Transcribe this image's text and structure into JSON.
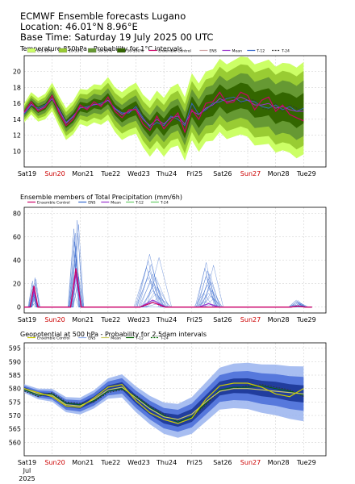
{
  "header": {
    "title": "ECMWF Ensemble forecasts Lugano",
    "location": "Location:  46.01°N 8.96°E",
    "base_time": "Base Time: Saturday 19 July 2025 00 UTC"
  },
  "x_axis": {
    "days": [
      {
        "label": "Sat19",
        "weekend": false
      },
      {
        "label": "Sun20",
        "weekend": true
      },
      {
        "label": "Mon21",
        "weekend": false
      },
      {
        "label": "Tue22",
        "weekend": false
      },
      {
        "label": "Wed23",
        "weekend": false
      },
      {
        "label": "Thu24",
        "weekend": false
      },
      {
        "label": "Fri25",
        "weekend": false
      },
      {
        "label": "Sat26",
        "weekend": false
      },
      {
        "label": "Sun27",
        "weekend": true
      },
      {
        "label": "Mon28",
        "weekend": false
      },
      {
        "label": "Tue29",
        "weekend": false
      }
    ],
    "month": "Jul",
    "year": "2025"
  },
  "colors": {
    "control": "#cc0066",
    "ens": "#3366cc",
    "mean": "#9933cc",
    "t12": "#66cc66",
    "t24": "#333333",
    "weekend": "#cc0000",
    "p_0_10": "#ccff66",
    "p_10_30": "#99cc33",
    "p_30_50": "#669933",
    "p_50_100": "#336600",
    "z_outer": "#99b3ee",
    "z_mid": "#4d70d9",
    "z_inner": "#1f3a99"
  },
  "chart_data": [
    {
      "type": "area",
      "id": "temp",
      "title": "Temperature 850hPa - Probability for 1°C intervals",
      "ylim": [
        8,
        22
      ],
      "yticks": [
        10,
        12,
        14,
        16,
        18,
        20
      ],
      "xlim": [
        0,
        10.8
      ],
      "legend": [
        {
          "label": "0.5-10%",
          "kind": "box",
          "color": "#ccff66"
        },
        {
          "label": "10-30%",
          "kind": "box",
          "color": "#99cc33"
        },
        {
          "label": "30-50%",
          "kind": "box",
          "color": "#669933"
        },
        {
          "label": "50-100%",
          "kind": "box",
          "color": "#336600"
        },
        {
          "label": "Ensemble Control",
          "kind": "line",
          "color": "#cc0066"
        },
        {
          "label": "ENS",
          "kind": "line",
          "color": "#cfa0a0"
        },
        {
          "label": "Mean",
          "kind": "line",
          "color": "#9933cc"
        },
        {
          "label": "T-12",
          "kind": "line",
          "color": "#3366cc"
        },
        {
          "label": "T-24",
          "kind": "dash",
          "color": "#333333"
        }
      ],
      "x": [
        0,
        0.25,
        0.5,
        0.75,
        1,
        1.25,
        1.5,
        1.75,
        2,
        2.25,
        2.5,
        2.75,
        3,
        3.25,
        3.5,
        3.75,
        4,
        4.25,
        4.5,
        4.75,
        5,
        5.25,
        5.5,
        5.75,
        6,
        6.25,
        6.5,
        6.75,
        7,
        7.25,
        7.5,
        7.75,
        8,
        8.25,
        8.5,
        8.75,
        9,
        9.25,
        9.5,
        9.75,
        10
      ],
      "median": [
        14.8,
        16.0,
        15.2,
        15.6,
        16.8,
        15.0,
        13.4,
        14.2,
        15.6,
        15.4,
        16.0,
        15.8,
        16.6,
        15.2,
        14.4,
        15.0,
        15.4,
        13.8,
        12.8,
        14.0,
        13.0,
        14.2,
        14.6,
        12.8,
        15.6,
        14.2,
        15.6,
        15.8,
        17.0,
        16.2,
        16.6,
        17.0,
        16.8,
        15.8,
        16.0,
        16.2,
        15.2,
        15.6,
        15.4,
        14.8,
        15.4
      ],
      "spread50": [
        0.3,
        0.4,
        0.4,
        0.4,
        0.4,
        0.5,
        0.5,
        0.6,
        0.6,
        0.6,
        0.6,
        0.6,
        0.7,
        0.7,
        0.8,
        0.8,
        0.9,
        0.9,
        1.0,
        1.0,
        1.1,
        1.1,
        1.2,
        1.2,
        1.3,
        1.3,
        1.4,
        1.4,
        1.4,
        1.5,
        1.5,
        1.6,
        1.6,
        1.6,
        1.7,
        1.7,
        1.8,
        1.8,
        1.8,
        1.9,
        1.9
      ],
      "spread30": [
        0.6,
        0.7,
        0.8,
        0.8,
        0.9,
        0.9,
        1.0,
        1.0,
        1.1,
        1.1,
        1.2,
        1.2,
        1.3,
        1.3,
        1.4,
        1.5,
        1.6,
        1.6,
        1.7,
        1.8,
        1.9,
        2.0,
        2.0,
        2.1,
        2.2,
        2.3,
        2.4,
        2.5,
        2.5,
        2.6,
        2.7,
        2.8,
        2.9,
        2.9,
        3.0,
        3.1,
        3.2,
        3.3,
        3.3,
        3.4,
        3.5
      ],
      "spread10": [
        0.9,
        1.0,
        1.1,
        1.2,
        1.3,
        1.4,
        1.5,
        1.6,
        1.6,
        1.7,
        1.8,
        1.9,
        2.0,
        2.1,
        2.2,
        2.3,
        2.4,
        2.5,
        2.6,
        2.7,
        2.8,
        2.9,
        3.0,
        3.1,
        3.2,
        3.3,
        3.4,
        3.5,
        3.6,
        3.7,
        3.8,
        3.9,
        4.0,
        4.1,
        4.2,
        4.3,
        4.4,
        4.5,
        4.5,
        4.6,
        4.7
      ],
      "spread0": [
        1.2,
        1.4,
        1.5,
        1.6,
        1.8,
        1.9,
        2.0,
        2.1,
        2.2,
        2.3,
        2.4,
        2.5,
        2.7,
        2.8,
        3.0,
        3.1,
        3.2,
        3.3,
        3.5,
        3.6,
        3.7,
        3.8,
        3.9,
        4.0,
        4.2,
        4.3,
        4.4,
        4.5,
        4.6,
        4.7,
        4.8,
        4.9,
        5.0,
        5.1,
        5.2,
        5.3,
        5.4,
        5.5,
        5.6,
        5.7,
        5.8
      ],
      "control": [
        14.9,
        16.2,
        15.0,
        15.5,
        17.0,
        14.8,
        13.2,
        14.0,
        15.8,
        15.2,
        16.2,
        15.6,
        16.8,
        15.0,
        14.2,
        15.2,
        15.2,
        13.4,
        12.6,
        14.4,
        12.8,
        13.8,
        14.8,
        12.4,
        15.2,
        14.0,
        16.0,
        16.2,
        17.4,
        16.0,
        16.2,
        17.4,
        17.0,
        15.2,
        16.4,
        16.8,
        15.0,
        15.8,
        14.6,
        14.2,
        13.8
      ],
      "mean": [
        14.8,
        15.9,
        15.2,
        15.6,
        16.6,
        15.1,
        13.5,
        14.3,
        15.5,
        15.4,
        15.9,
        15.8,
        16.4,
        15.3,
        14.6,
        15.0,
        15.3,
        14.0,
        13.2,
        14.0,
        13.4,
        14.2,
        14.4,
        13.4,
        15.0,
        14.6,
        15.4,
        15.8,
        16.6,
        16.2,
        16.4,
        16.8,
        16.4,
        15.8,
        15.8,
        16.0,
        15.4,
        15.6,
        15.2,
        15.0,
        15.0
      ],
      "t12": [
        14.6,
        15.8,
        15.4,
        15.8,
        16.6,
        15.2,
        13.6,
        14.4,
        15.4,
        15.6,
        15.8,
        16.0,
        16.4,
        15.4,
        14.8,
        14.8,
        15.6,
        14.2,
        13.0,
        13.6,
        13.2,
        14.4,
        14.0,
        13.2,
        16.0,
        14.6,
        15.2,
        16.0,
        16.2,
        16.6,
        16.8,
        16.2,
        16.4,
        16.2,
        15.6,
        15.4,
        15.8,
        15.2,
        15.6,
        15.0,
        15.4
      ],
      "t24": [
        14.7,
        15.6,
        15.5,
        15.9,
        16.4,
        15.4,
        13.8,
        14.6,
        15.2,
        15.8,
        15.6,
        16.2,
        16.2,
        15.6,
        14.9,
        14.6,
        15.8,
        14.5,
        13.4,
        13.4,
        13.6,
        14.6,
        13.8,
        13.6,
        15.6,
        14.8,
        15.0,
        15.6,
        16.4,
        16.8,
        16.6,
        16.0,
        16.6,
        16.4,
        15.4,
        15.2,
        16.0,
        15.0,
        15.8,
        15.4,
        15.0
      ]
    },
    {
      "type": "line",
      "id": "precip",
      "title": "Ensemble members of Total Precipitation (mm/6h)",
      "ylim": [
        -5,
        85
      ],
      "yticks": [
        0,
        20,
        40,
        60,
        80
      ],
      "xlim": [
        0,
        10.8
      ],
      "legend": [
        {
          "label": "Ensemble Control",
          "kind": "line",
          "color": "#cc0066"
        },
        {
          "label": "ENS",
          "kind": "line",
          "color": "#3366cc"
        },
        {
          "label": "Mean",
          "kind": "line",
          "color": "#9933cc"
        },
        {
          "label": "T-12",
          "kind": "line",
          "color": "#66cc66"
        },
        {
          "label": "T-24",
          "kind": "line",
          "color": "#66cc66"
        }
      ],
      "events": [
        {
          "x": 0.35,
          "width": 0.28,
          "max": 25,
          "min": 3,
          "control": 18,
          "mean": 14
        },
        {
          "x": 1.85,
          "width": 0.38,
          "max": 74,
          "min": 15,
          "control": 33,
          "mean": 28
        },
        {
          "x": 4.6,
          "width": 0.9,
          "max": 45,
          "min": 0,
          "control": 4,
          "mean": 6
        },
        {
          "x": 6.6,
          "width": 0.7,
          "max": 38,
          "min": 0,
          "control": 0,
          "mean": 3
        },
        {
          "x": 9.8,
          "width": 0.5,
          "max": 6,
          "min": 0,
          "control": 1,
          "mean": 1
        }
      ]
    },
    {
      "type": "area",
      "id": "geo",
      "title": "Geopotential at 500 hPa - Probability for 2.5dam intervals",
      "ylim": [
        555,
        597
      ],
      "yticks": [
        560,
        565,
        570,
        575,
        580,
        585,
        590,
        595
      ],
      "xlim": [
        0,
        10.8
      ],
      "legend": [
        {
          "label": "Ensemble Control",
          "kind": "line",
          "color": "#cccc00"
        },
        {
          "label": "ENS",
          "kind": "line",
          "color": "#99b3ee"
        },
        {
          "label": "Mean",
          "kind": "line",
          "color": "#cccc66"
        },
        {
          "label": "T-12",
          "kind": "line",
          "color": "#006600"
        },
        {
          "label": "T-24",
          "kind": "dash",
          "color": "#006600"
        }
      ],
      "x": [
        0,
        0.5,
        1,
        1.5,
        2,
        2.5,
        3,
        3.5,
        4,
        4.5,
        5,
        5.5,
        6,
        6.5,
        7,
        7.5,
        8,
        8.5,
        9,
        9.5,
        10
      ],
      "median": [
        580,
        578,
        577.5,
        574,
        573.5,
        576,
        580,
        581,
        576,
        572,
        569,
        568,
        570,
        575,
        580,
        581,
        581,
        580,
        579.5,
        578.5,
        578
      ],
      "spread_inner": [
        0.5,
        0.6,
        0.8,
        0.9,
        1.0,
        1.1,
        1.2,
        1.4,
        1.6,
        1.8,
        2.0,
        2.2,
        2.4,
        2.5,
        2.6,
        2.7,
        2.8,
        2.9,
        3.0,
        3.1,
        3.2
      ],
      "spread_mid": [
        1.0,
        1.3,
        1.6,
        1.9,
        2.1,
        2.3,
        2.6,
        2.9,
        3.2,
        3.5,
        3.8,
        4.1,
        4.4,
        4.7,
        5.0,
        5.3,
        5.5,
        5.7,
        5.9,
        6.1,
        6.3
      ],
      "spread_outer": [
        1.6,
        2.0,
        2.4,
        2.8,
        3.1,
        3.4,
        3.8,
        4.3,
        4.8,
        5.3,
        5.8,
        6.3,
        6.8,
        7.3,
        7.8,
        8.3,
        8.6,
        9.0,
        9.4,
        9.8,
        10.2
      ],
      "control": [
        580,
        578.5,
        577,
        573.5,
        573,
        576.5,
        580.5,
        581.5,
        575.5,
        571,
        568.5,
        567,
        569,
        576,
        581,
        582,
        582,
        580.5,
        578,
        577,
        580
      ],
      "mean": [
        580,
        578,
        577.5,
        574,
        573.5,
        576,
        579.5,
        580.5,
        576.5,
        572.5,
        569.5,
        568.5,
        570.5,
        575,
        579,
        580,
        580,
        579.5,
        579,
        578.5,
        578
      ],
      "t12": [
        579.5,
        577.5,
        578,
        574.5,
        574,
        575.5,
        579,
        580,
        577,
        573,
        570,
        567.5,
        569.5,
        574.5,
        579.5,
        580.5,
        580.5,
        581,
        580,
        579,
        577.5
      ],
      "t24": [
        579,
        577,
        578.5,
        575,
        574.5,
        575,
        578.5,
        579.5,
        577.5,
        573.5,
        570.5,
        568,
        569,
        574,
        579,
        580,
        581,
        581.5,
        580.5,
        579.5,
        577
      ]
    }
  ]
}
